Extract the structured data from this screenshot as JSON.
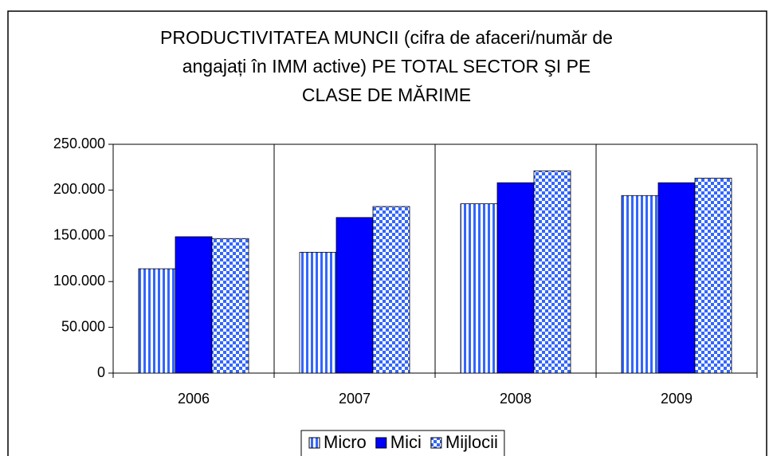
{
  "chart_data": {
    "type": "bar",
    "title": [
      "PRODUCTIVITATEA MUNCII (cifra de afaceri/număr de",
      "angajați în IMM active) PE TOTAL SECTOR ŞI PE",
      "CLASE DE MĂRIME"
    ],
    "categories": [
      "2006",
      "2007",
      "2008",
      "2009"
    ],
    "series": [
      {
        "name": "Micro",
        "color": "#0000ff",
        "pattern": "vertical-stripes",
        "values": [
          114000,
          132000,
          185000,
          194000
        ]
      },
      {
        "name": "Mici",
        "color": "#0000ff",
        "pattern": "solid",
        "values": [
          149000,
          170000,
          208000,
          208000
        ]
      },
      {
        "name": "Mijlocii",
        "color": "#0000ff",
        "pattern": "checker",
        "values": [
          147000,
          182000,
          221000,
          213000
        ]
      }
    ],
    "ylim": [
      0,
      250000
    ],
    "yticks": [
      0,
      {
        "value": 50000,
        "label": "50.000"
      },
      {
        "value": 100000,
        "label": "100.000"
      },
      {
        "value": 150000,
        "label": "150.000"
      },
      {
        "value": 200000,
        "label": "200.000"
      },
      {
        "value": 250000,
        "label": "250.000"
      }
    ],
    "grid": false,
    "category_separators": true,
    "legend": "bottom"
  }
}
